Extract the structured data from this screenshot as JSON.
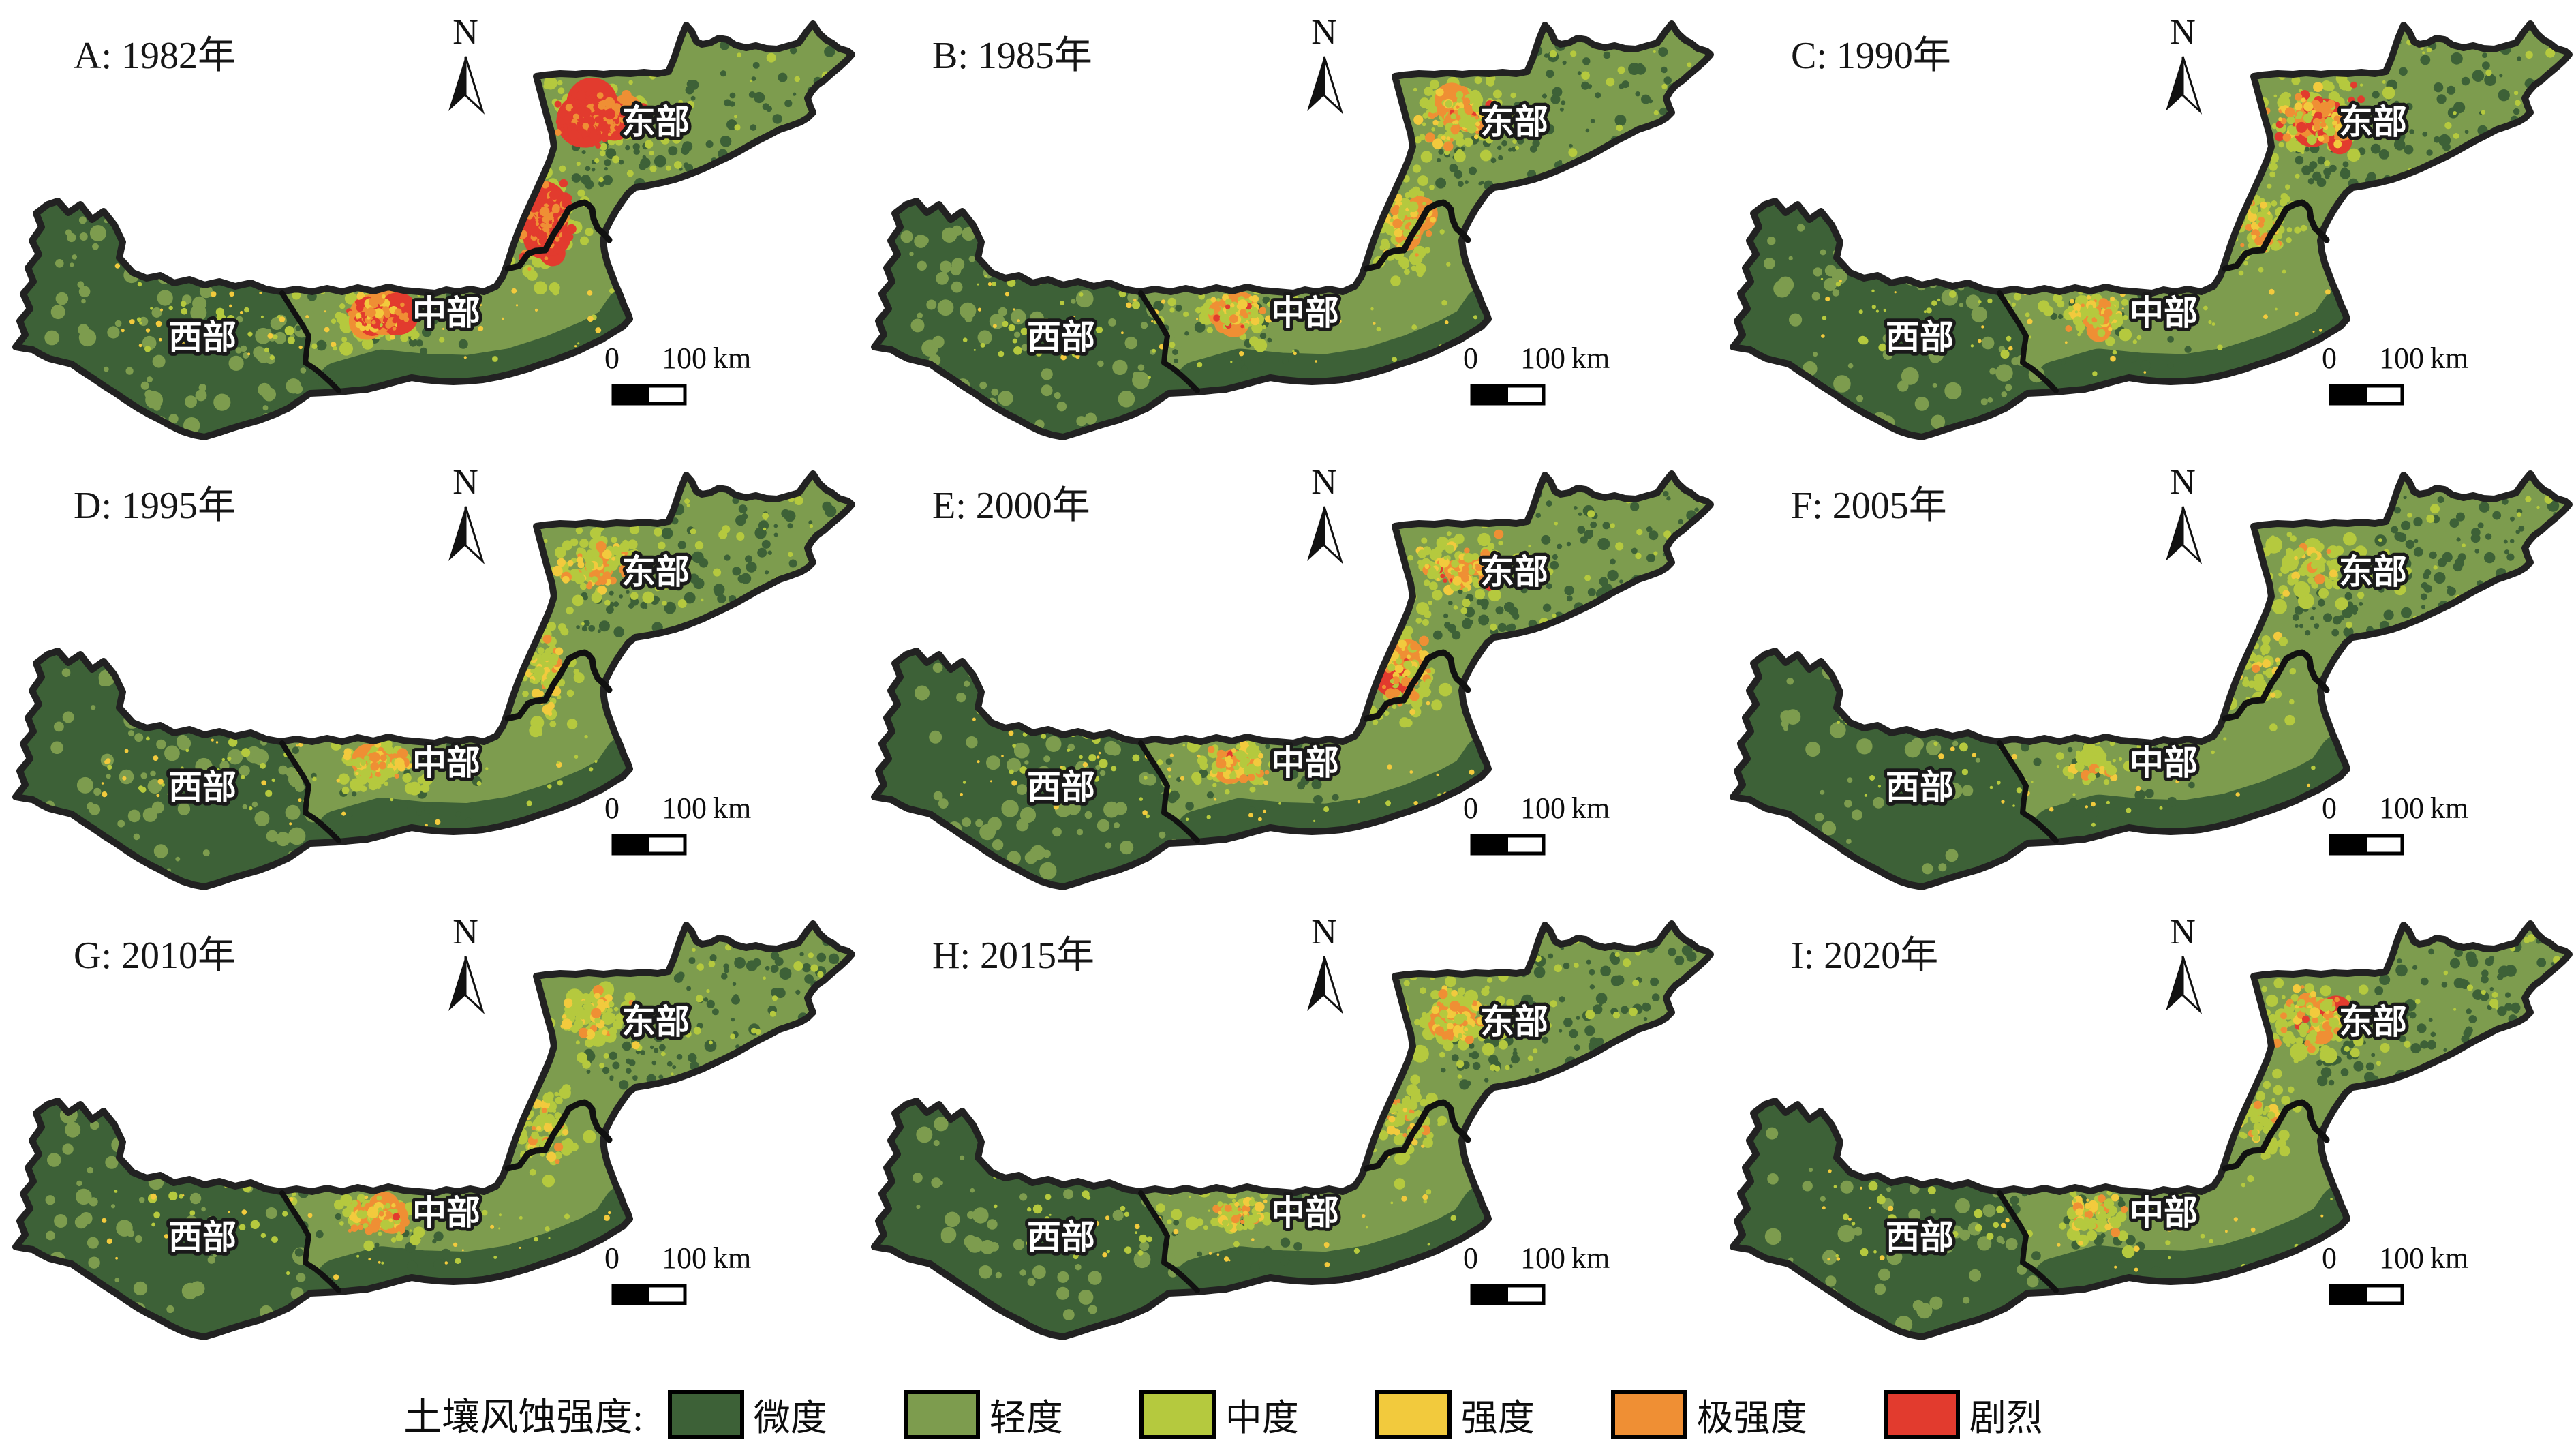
{
  "figure": {
    "type": "soil-wind-erosion-intensity-map-series",
    "north_label": "N",
    "regions": {
      "east": "东部",
      "central": "中部",
      "west": "西部"
    },
    "scalebar": {
      "zero": "0",
      "distance": "100",
      "unit": "km",
      "text": "0  100 km"
    }
  },
  "legend": {
    "title": "土壤风蚀强度:",
    "classes": [
      {
        "label": "微度",
        "color": "#3d6137"
      },
      {
        "label": "轻度",
        "color": "#7d9c4e"
      },
      {
        "label": "中度",
        "color": "#b5c93e"
      },
      {
        "label": "强度",
        "color": "#f2ca3d"
      },
      {
        "label": "极强度",
        "color": "#ef8f34"
      },
      {
        "label": "剧烈",
        "color": "#e23b2e"
      }
    ]
  },
  "panels": [
    {
      "id": "A",
      "label": "A: 1982年",
      "year": "1982",
      "erosion_pattern": {
        "east": 0.95,
        "neck": 0.95,
        "central": 0.8,
        "west": 0.5,
        "dark": 0.25
      }
    },
    {
      "id": "B",
      "label": "B: 1985年",
      "year": "1985",
      "erosion_pattern": {
        "east": 0.55,
        "neck": 0.5,
        "central": 0.55,
        "west": 0.4,
        "dark": 0.35
      }
    },
    {
      "id": "C",
      "label": "C: 1990年",
      "year": "1990",
      "erosion_pattern": {
        "east": 0.65,
        "neck": 0.4,
        "central": 0.45,
        "west": 0.4,
        "dark": 0.35
      }
    },
    {
      "id": "D",
      "label": "D: 1995年",
      "year": "1995",
      "erosion_pattern": {
        "east": 0.45,
        "neck": 0.35,
        "central": 0.5,
        "west": 0.3,
        "dark": 0.45
      }
    },
    {
      "id": "E",
      "label": "E: 2000年",
      "year": "2000",
      "erosion_pattern": {
        "east": 0.55,
        "neck": 0.55,
        "central": 0.5,
        "west": 0.35,
        "dark": 0.4
      }
    },
    {
      "id": "F",
      "label": "F: 2005年",
      "year": "2005",
      "erosion_pattern": {
        "east": 0.12,
        "neck": 0.08,
        "central": 0.12,
        "west": 0.1,
        "dark": 0.8
      }
    },
    {
      "id": "G",
      "label": "G: 2010年",
      "year": "2010",
      "erosion_pattern": {
        "east": 0.3,
        "neck": 0.25,
        "central": 0.55,
        "west": 0.2,
        "dark": 0.6
      }
    },
    {
      "id": "H",
      "label": "H: 2015年",
      "year": "2015",
      "erosion_pattern": {
        "east": 0.5,
        "neck": 0.2,
        "central": 0.25,
        "west": 0.2,
        "dark": 0.6
      }
    },
    {
      "id": "I",
      "label": "I: 2020年",
      "year": "2020",
      "erosion_pattern": {
        "east": 0.55,
        "neck": 0.15,
        "central": 0.3,
        "west": 0.15,
        "dark": 0.7
      }
    }
  ]
}
